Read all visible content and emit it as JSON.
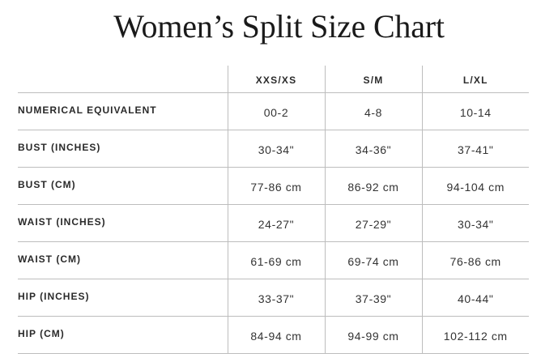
{
  "title": "Women’s Split Size Chart",
  "table": {
    "columns": [
      "",
      "XXS/XS",
      "S/M",
      "L/XL"
    ],
    "rows": [
      {
        "label": "NUMERICAL EQUIVALENT",
        "values": [
          "00-2",
          "4-8",
          "10-14"
        ]
      },
      {
        "label": "BUST (INCHES)",
        "values": [
          "30-34\"",
          "34-36\"",
          "37-41\""
        ]
      },
      {
        "label": "BUST (CM)",
        "values": [
          "77-86 cm",
          "86-92 cm",
          "94-104 cm"
        ]
      },
      {
        "label": "WAIST (INCHES)",
        "values": [
          "24-27\"",
          "27-29\"",
          "30-34\""
        ]
      },
      {
        "label": "WAIST (CM)",
        "values": [
          "61-69 cm",
          "69-74 cm",
          "76-86 cm"
        ]
      },
      {
        "label": "HIP (INCHES)",
        "values": [
          "33-37\"",
          "37-39\"",
          "40-44\""
        ]
      },
      {
        "label": "HIP (CM)",
        "values": [
          "84-94 cm",
          "94-99 cm",
          "102-112 cm"
        ]
      }
    ]
  },
  "colors": {
    "text": "#222222",
    "rule": "#bdbdbd",
    "background": "#ffffff"
  }
}
